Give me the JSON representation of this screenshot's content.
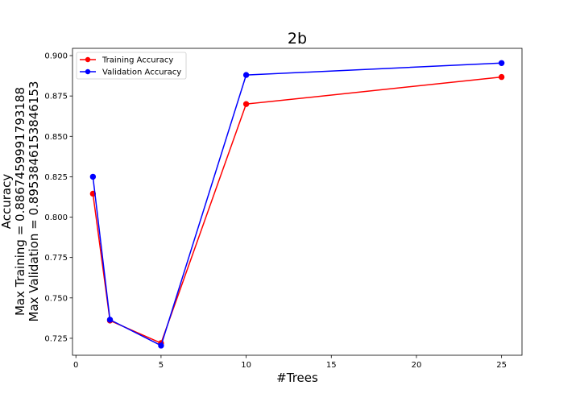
{
  "chart_data": {
    "type": "line",
    "title": "2b",
    "xlabel": "#Trees",
    "ylabel_lines": [
      "Accuracy",
      "Max Training = 0.8867459991793188",
      "Max Validation = 0.8953846153846153"
    ],
    "x": [
      1,
      2,
      5,
      10,
      25
    ],
    "xlim": [
      -0.2,
      26.2
    ],
    "ylim": [
      0.7145,
      0.9045
    ],
    "xticks": [
      0,
      5,
      10,
      15,
      20,
      25
    ],
    "yticks": [
      0.725,
      0.75,
      0.775,
      0.8,
      0.825,
      0.85,
      0.875,
      0.9
    ],
    "xtick_labels": [
      "0",
      "5",
      "10",
      "15",
      "20",
      "25"
    ],
    "ytick_labels": [
      "0.725",
      "0.750",
      "0.775",
      "0.800",
      "0.825",
      "0.850",
      "0.875",
      "0.900"
    ],
    "grid": false,
    "legend_position": "upper-left",
    "series": [
      {
        "name": "Training Accuracy",
        "color": "#ff0000",
        "values": [
          0.8145,
          0.736,
          0.722,
          0.87,
          0.8867459991793188
        ]
      },
      {
        "name": "Validation Accuracy",
        "color": "#0000ff",
        "values": [
          0.825,
          0.7365,
          0.7205,
          0.888,
          0.8953846153846153
        ]
      }
    ]
  }
}
